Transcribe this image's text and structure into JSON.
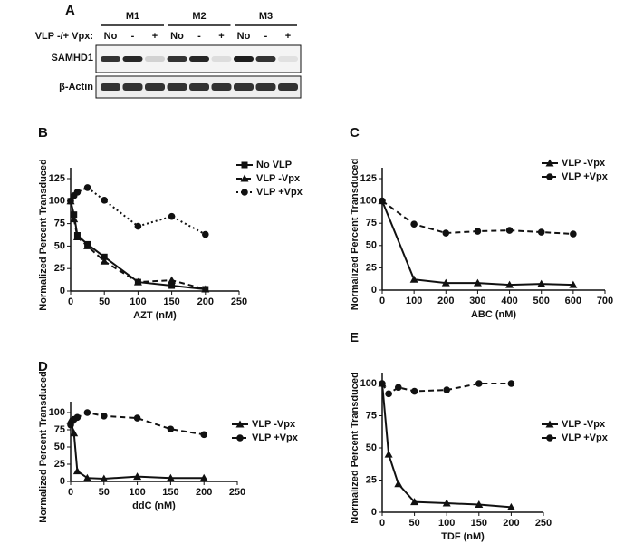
{
  "blot": {
    "panel": "A",
    "groups": [
      "M1",
      "M2",
      "M3"
    ],
    "lane_header": "VLP -/+ Vpx:",
    "lanes": [
      "No",
      "-",
      "+",
      "No",
      "-",
      "+",
      "No",
      "-",
      "+"
    ],
    "rows": [
      "SAMHD1",
      "β-Actin"
    ]
  },
  "chart_data": [
    {
      "panel": "B",
      "type": "line",
      "xlabel": "AZT (nM)",
      "ylabel": "Normalized Percent Transduced",
      "x": [
        0,
        5,
        10,
        25,
        50,
        100,
        150,
        200
      ],
      "series": [
        {
          "name": "No VLP",
          "color": "#111111",
          "dash": "solid",
          "marker": "square",
          "values": [
            100,
            85,
            62,
            52,
            38,
            10,
            6,
            2
          ]
        },
        {
          "name": "VLP -Vpx",
          "color": "#111111",
          "dash": "dashed",
          "marker": "triangle",
          "values": [
            100,
            80,
            60,
            50,
            33,
            10,
            12,
            2
          ]
        },
        {
          "name": "VLP +Vpx",
          "color": "#111111",
          "dash": "dotted",
          "marker": "circle",
          "values": [
            100,
            106,
            110,
            115,
            101,
            72,
            83,
            63
          ]
        }
      ],
      "xlim": [
        0,
        250
      ],
      "xticks": [
        0,
        50,
        100,
        150,
        200,
        250
      ],
      "ylim": [
        0,
        125
      ],
      "yticks": [
        0,
        25,
        50,
        75,
        100,
        125
      ]
    },
    {
      "panel": "C",
      "type": "line",
      "xlabel": "ABC (nM)",
      "ylabel": "Normalized Percent Transduced",
      "x": [
        0,
        100,
        200,
        300,
        400,
        500,
        600
      ],
      "series": [
        {
          "name": "VLP -Vpx",
          "color": "#111111",
          "dash": "solid",
          "marker": "triangle",
          "values": [
            100,
            12,
            8,
            8,
            6,
            7,
            6
          ]
        },
        {
          "name": "VLP +Vpx",
          "color": "#111111",
          "dash": "dashed",
          "marker": "circle",
          "values": [
            100,
            74,
            64,
            66,
            67,
            65,
            63
          ]
        }
      ],
      "xlim": [
        0,
        700
      ],
      "xticks": [
        0,
        100,
        200,
        300,
        400,
        500,
        600,
        700
      ],
      "ylim": [
        0,
        125
      ],
      "yticks": [
        0,
        25,
        50,
        75,
        100,
        125
      ]
    },
    {
      "panel": "D",
      "type": "line",
      "xlabel": "ddC (nM)",
      "ylabel": "Normalized Percent Transduced",
      "x": [
        0,
        5,
        10,
        25,
        50,
        100,
        150,
        200
      ],
      "series": [
        {
          "name": "VLP -Vpx",
          "color": "#111111",
          "dash": "solid",
          "marker": "triangle",
          "values": [
            88,
            70,
            15,
            5,
            4,
            7,
            5,
            5
          ]
        },
        {
          "name": "VLP +Vpx",
          "color": "#111111",
          "dash": "dashed",
          "marker": "circle",
          "values": [
            82,
            90,
            93,
            100,
            95,
            92,
            76,
            68
          ]
        }
      ],
      "xlim": [
        0,
        250
      ],
      "xticks": [
        0,
        50,
        100,
        150,
        200,
        250
      ],
      "ylim": [
        0,
        100
      ],
      "yticks": [
        0,
        25,
        50,
        75,
        100
      ]
    },
    {
      "panel": "E",
      "type": "line",
      "xlabel": "TDF (nM)",
      "ylabel": "Normalized Percent Transduced",
      "x": [
        0,
        10,
        25,
        50,
        100,
        150,
        200
      ],
      "series": [
        {
          "name": "VLP -Vpx",
          "color": "#111111",
          "dash": "solid",
          "marker": "triangle",
          "values": [
            100,
            45,
            22,
            8,
            7,
            6,
            4
          ]
        },
        {
          "name": "VLP +Vpx",
          "color": "#111111",
          "dash": "dashed",
          "marker": "circle",
          "values": [
            100,
            92,
            97,
            94,
            95,
            100,
            100
          ]
        }
      ],
      "xlim": [
        0,
        250
      ],
      "xticks": [
        0,
        50,
        100,
        150,
        200,
        250
      ],
      "ylim": [
        0,
        100
      ],
      "yticks": [
        0,
        25,
        50,
        75,
        100
      ]
    }
  ]
}
